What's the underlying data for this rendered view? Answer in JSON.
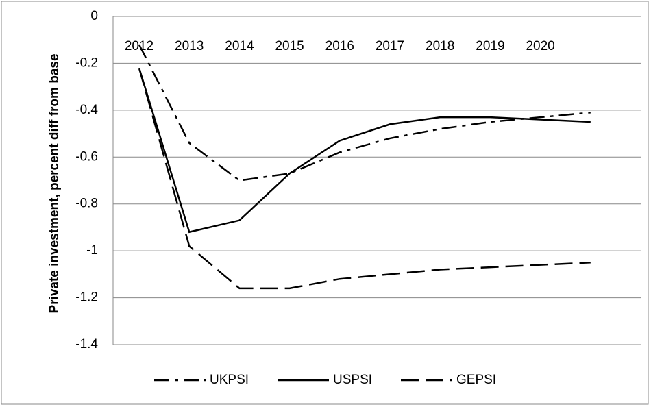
{
  "chart_data": {
    "type": "line",
    "y_label": "Private investment, percent diff from base",
    "categories": [
      "2012",
      "2013",
      "2014",
      "2015",
      "2016",
      "2017",
      "2018",
      "2019",
      "2020",
      null
    ],
    "series": [
      {
        "name": "UKPSI",
        "color": "#000000",
        "style": "dashdot",
        "values": [
          -0.12,
          -0.54,
          -0.7,
          -0.67,
          -0.58,
          -0.52,
          -0.48,
          -0.45,
          -0.43,
          -0.41
        ]
      },
      {
        "name": "USPSI",
        "color": "#000000",
        "style": "solid",
        "values": [
          -0.22,
          -0.92,
          -0.87,
          -0.67,
          -0.53,
          -0.46,
          -0.43,
          -0.43,
          -0.44,
          -0.45
        ]
      },
      {
        "name": "GEPSI",
        "color": "#000000",
        "style": "dashed",
        "values": [
          -0.22,
          -0.98,
          -1.16,
          -1.16,
          -1.12,
          -1.1,
          -1.08,
          -1.07,
          -1.06,
          -1.05
        ]
      }
    ],
    "ylim": [
      -1.4,
      0
    ],
    "yticks": [
      0,
      -0.2,
      -0.4,
      -0.6,
      -0.8,
      -1,
      -1.2,
      -1.4
    ],
    "grid": true,
    "legend": "bottom"
  }
}
